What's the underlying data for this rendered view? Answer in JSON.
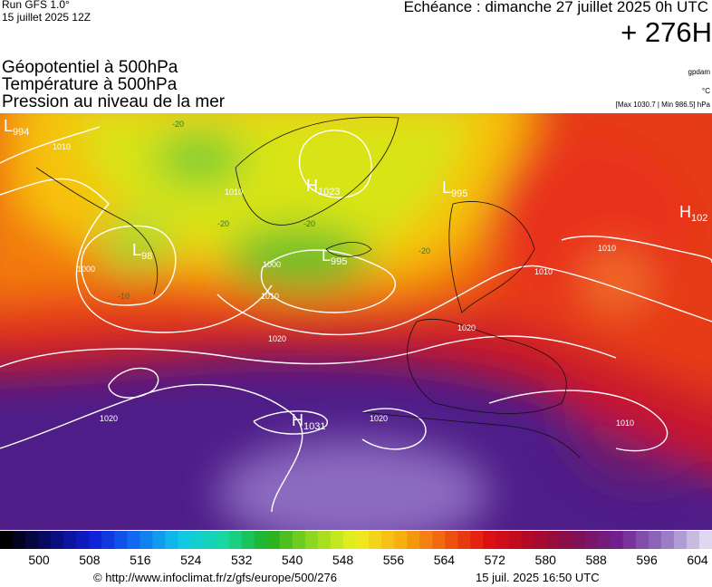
{
  "header": {
    "run": "Run GFS 1.0°",
    "run_date": "15 juillet 2025 12Z",
    "echeance": "Echéance : dimanche 27 juillet 2025 0h UTC",
    "lead": "+ 276H",
    "fields": [
      "Géopotentiel à 500hPa",
      "Température à 500hPa",
      "Pression au niveau de la mer"
    ],
    "units": [
      "gpdam",
      "°C",
      "[Max 1030.7 | Min 986.5] hPa"
    ]
  },
  "map": {
    "pressure_centers": [
      {
        "type": "L",
        "value": 994
      },
      {
        "type": "L",
        "value": 98
      },
      {
        "type": "H",
        "value": 1023
      },
      {
        "type": "L",
        "value": 995
      },
      {
        "type": "L",
        "value": 995
      },
      {
        "type": "H",
        "value": 102
      },
      {
        "type": "H",
        "value": 1031
      }
    ],
    "isobar_labels": [
      1010,
      1010,
      1000,
      1010,
      1000,
      1010,
      1020,
      1010,
      1020,
      1020,
      1010,
      1020
    ],
    "temperature_labels": [
      -20,
      -20,
      -20,
      -20,
      -10
    ]
  },
  "legend": {
    "ticks": [
      500,
      508,
      516,
      524,
      532,
      540,
      548,
      556,
      564,
      572,
      580,
      588,
      596,
      604
    ]
  },
  "footer": {
    "source": "© http://www.infoclimat.fr/z/gfs/europe/500/276",
    "timestamp": "15 juil. 2025 16:50 UTC"
  }
}
